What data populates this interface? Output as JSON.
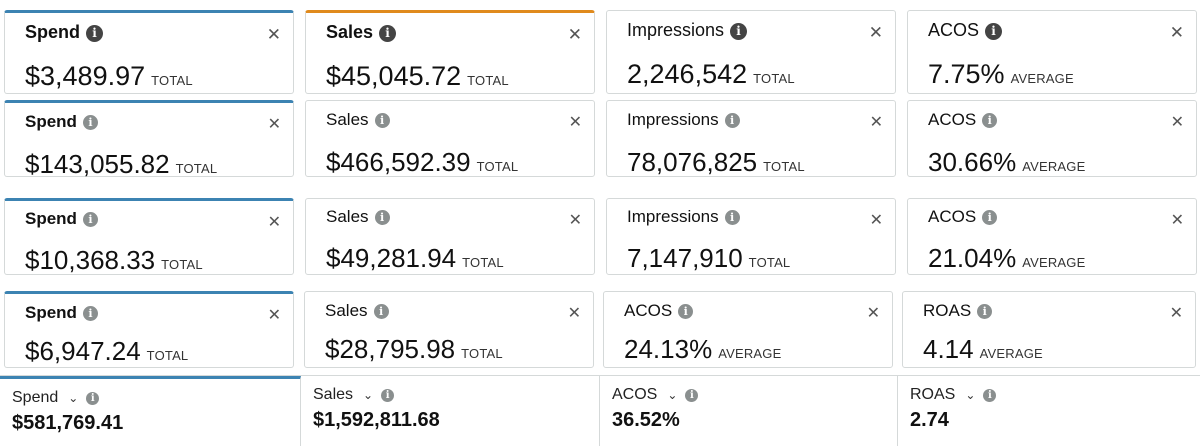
{
  "rows": [
    {
      "cards": [
        {
          "name": "Spend",
          "value": "$3,489.97",
          "unit": "TOTAL"
        },
        {
          "name": "Sales",
          "value": "$45,045.72",
          "unit": "TOTAL"
        },
        {
          "name": "Impressions",
          "value": "2,246,542",
          "unit": "TOTAL"
        },
        {
          "name": "ACOS",
          "value": "7.75%",
          "unit": "AVERAGE"
        }
      ]
    },
    {
      "cards": [
        {
          "name": "Spend",
          "value": "$143,055.82",
          "unit": "TOTAL"
        },
        {
          "name": "Sales",
          "value": "$466,592.39",
          "unit": "TOTAL"
        },
        {
          "name": "Impressions",
          "value": "78,076,825",
          "unit": "TOTAL"
        },
        {
          "name": "ACOS",
          "value": "30.66%",
          "unit": "AVERAGE"
        }
      ]
    },
    {
      "cards": [
        {
          "name": "Spend",
          "value": "$10,368.33",
          "unit": "TOTAL"
        },
        {
          "name": "Sales",
          "value": "$49,281.94",
          "unit": "TOTAL"
        },
        {
          "name": "Impressions",
          "value": "7,147,910",
          "unit": "TOTAL"
        },
        {
          "name": "ACOS",
          "value": "21.04%",
          "unit": "AVERAGE"
        }
      ]
    },
    {
      "cards": [
        {
          "name": "Spend",
          "value": "$6,947.24",
          "unit": "TOTAL"
        },
        {
          "name": "Sales",
          "value": "$28,795.98",
          "unit": "TOTAL"
        },
        {
          "name": "ACOS",
          "value": "24.13%",
          "unit": "AVERAGE"
        },
        {
          "name": "ROAS",
          "value": "4.14",
          "unit": "AVERAGE"
        }
      ]
    }
  ],
  "summary": [
    {
      "name": "Spend",
      "value": "$581,769.41"
    },
    {
      "name": "Sales",
      "value": "$1,592,811.68"
    },
    {
      "name": "ACOS",
      "value": "36.52%"
    },
    {
      "name": "ROAS",
      "value": "2.74"
    }
  ],
  "icons": {
    "info": "info-icon",
    "close": "close-icon",
    "chevron": "chevron-down-icon"
  },
  "colors": {
    "accent_blue": "#3c83b2",
    "accent_orange": "#e08a1d",
    "border": "#d5d9d9"
  }
}
